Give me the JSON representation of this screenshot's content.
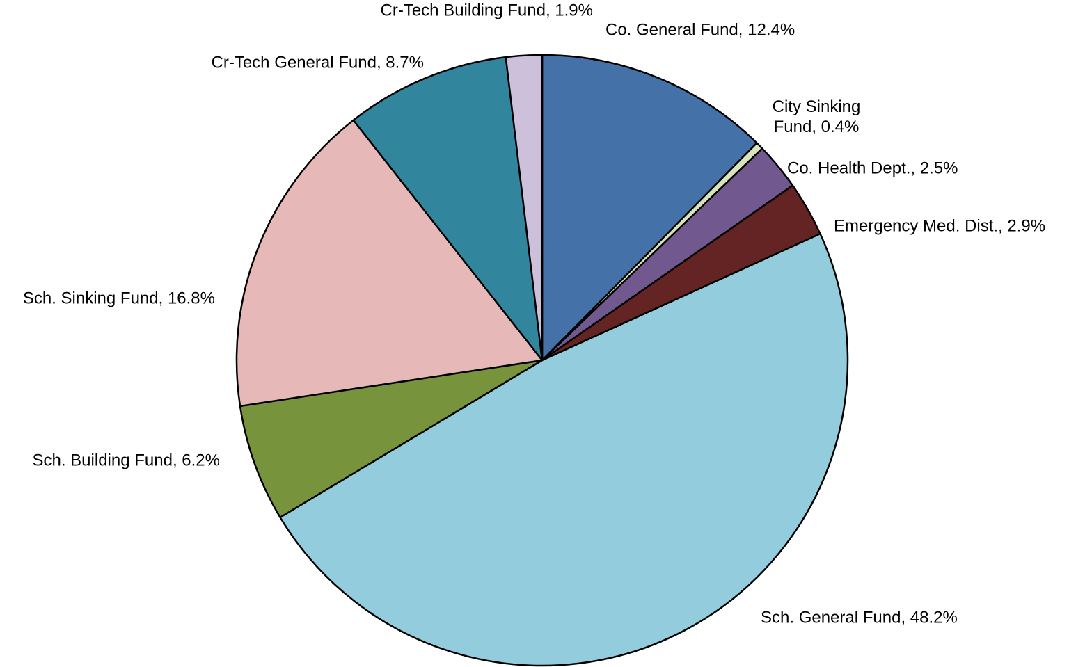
{
  "chart_data": {
    "type": "pie",
    "categories": [
      "Co. General Fund",
      "City Sinking Fund",
      "Co. Health Dept.",
      "Emergency Med. Dist.",
      "Sch. General Fund",
      "Sch. Building Fund",
      "Sch. Sinking Fund",
      "Cr-Tech General Fund",
      "Cr-Tech Building Fund"
    ],
    "values": [
      12.4,
      0.4,
      2.5,
      2.9,
      48.2,
      6.2,
      16.8,
      8.7,
      1.9
    ],
    "value_labels": [
      ", 12.4%",
      ", 0.4%",
      ", 2.5%",
      ", 2.9%",
      ", 48.2%",
      ", 6.2%",
      ", 16.8%",
      ", 8.7%",
      ", 1.9%"
    ],
    "colors": [
      "#4472a8",
      "#d8e4bc",
      "#71588f",
      "#632423",
      "#93cddd",
      "#77933c",
      "#e6b9b8",
      "#31859c",
      "#ccc0da"
    ]
  }
}
